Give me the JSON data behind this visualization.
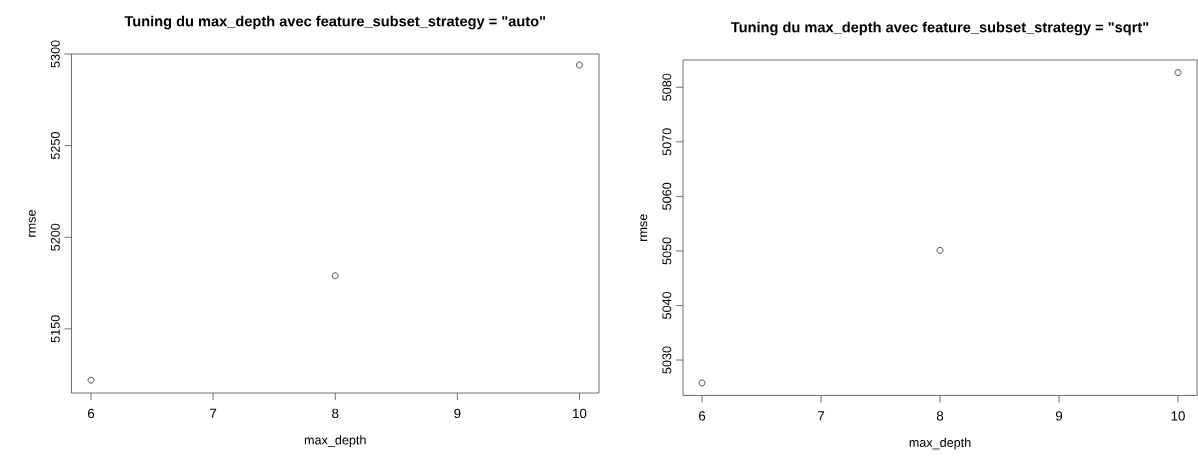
{
  "chart_data": [
    {
      "type": "scatter",
      "title": "Tuning du max_depth avec feature_subset_strategy = \"auto\"",
      "xlabel": "max_depth",
      "ylabel": "rmse",
      "x": [
        6,
        8,
        10
      ],
      "values": [
        5122,
        5179,
        5294
      ],
      "color": "#000000",
      "marker": "circle",
      "xlim": [
        5.84,
        10.16
      ],
      "ylim": [
        5115,
        5300
      ],
      "xticks": [
        6,
        7,
        8,
        9,
        10
      ],
      "yticks": [
        5150,
        5200,
        5250,
        5300
      ],
      "grid": false
    },
    {
      "type": "scatter",
      "title": "Tuning du max_depth avec feature_subset_strategy = \"sqrt\"",
      "xlabel": "max_depth",
      "ylabel": "rmse",
      "x": [
        6,
        8,
        10
      ],
      "values": [
        5025.8,
        5050.1,
        5082.7
      ],
      "color": "#000000",
      "marker": "circle",
      "xlim": [
        5.84,
        10.16
      ],
      "ylim": [
        5023.5,
        5085
      ],
      "xticks": [
        6,
        7,
        8,
        9,
        10
      ],
      "yticks": [
        5030,
        5040,
        5050,
        5060,
        5070,
        5080
      ],
      "grid": false
    }
  ]
}
